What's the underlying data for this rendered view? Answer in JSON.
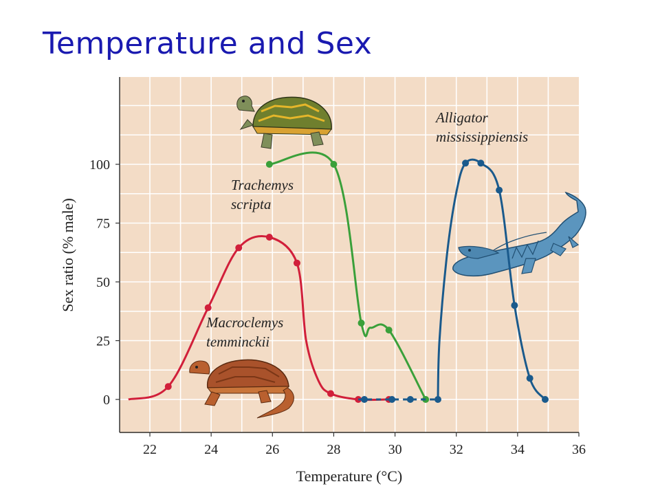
{
  "slide": {
    "title": "Temperature and Sex"
  },
  "chart_data": {
    "type": "line",
    "title": "",
    "xlabel": "Temperature (°C)",
    "ylabel": "Sex ratio (% male)",
    "xlim": [
      21,
      36
    ],
    "ylim": [
      0,
      130
    ],
    "xticks": [
      22,
      24,
      26,
      28,
      30,
      32,
      34,
      36
    ],
    "yticks": [
      0,
      25,
      50,
      75,
      100
    ],
    "grid": true,
    "legend": "none",
    "series": [
      {
        "name": "Macroclemys temminckii",
        "label_lines": [
          "Macroclemys",
          "temminckii"
        ],
        "color": "#d11f3a",
        "line": [
          [
            21.3,
            0
          ],
          [
            22.6,
            5.5
          ],
          [
            23.9,
            39
          ],
          [
            24.9,
            64.5
          ],
          [
            25.9,
            69
          ],
          [
            26.8,
            58
          ],
          [
            27.1,
            25
          ],
          [
            27.5,
            8
          ],
          [
            27.9,
            2.5
          ],
          [
            28.8,
            0
          ],
          [
            29.8,
            0
          ],
          [
            30.0,
            0
          ]
        ],
        "points": [
          [
            22.6,
            5.5
          ],
          [
            23.9,
            39
          ],
          [
            24.9,
            64.5
          ],
          [
            25.9,
            69
          ],
          [
            26.8,
            58
          ],
          [
            27.9,
            2.5
          ],
          [
            28.8,
            0
          ],
          [
            29.8,
            0
          ]
        ]
      },
      {
        "name": "Trachemys scripta",
        "label_lines": [
          "Trachemys",
          "scripta"
        ],
        "color": "#3aa03a",
        "line": [
          [
            25.9,
            100
          ],
          [
            28.0,
            100
          ],
          [
            28.9,
            32.5
          ],
          [
            29.2,
            30.5
          ],
          [
            29.8,
            29.5
          ],
          [
            31.0,
            0
          ]
        ],
        "points": [
          [
            25.9,
            100
          ],
          [
            28.0,
            100
          ],
          [
            28.9,
            32.5
          ],
          [
            29.8,
            29.5
          ],
          [
            31.0,
            0
          ]
        ]
      },
      {
        "name": "Alligator mississippiensis",
        "label_lines": [
          "Alligator",
          "mississippiensis"
        ],
        "color": "#1a5a8c",
        "dashed": [
          [
            28.8,
            0
          ],
          [
            31.4,
            0
          ]
        ],
        "line": [
          [
            31.4,
            0
          ],
          [
            31.45,
            25
          ],
          [
            31.7,
            62
          ],
          [
            32.0,
            88
          ],
          [
            32.3,
            100.5
          ],
          [
            32.8,
            100.5
          ],
          [
            33.4,
            89
          ],
          [
            33.9,
            40
          ],
          [
            34.4,
            9
          ],
          [
            34.9,
            0
          ]
        ],
        "points": [
          [
            29.0,
            0
          ],
          [
            29.9,
            0
          ],
          [
            30.5,
            0
          ],
          [
            31.4,
            0
          ],
          [
            32.3,
            100.5
          ],
          [
            32.8,
            100.5
          ],
          [
            33.4,
            89
          ],
          [
            33.9,
            40
          ],
          [
            34.4,
            9
          ],
          [
            34.9,
            0
          ]
        ]
      }
    ]
  },
  "icons": [
    "box-turtle-icon",
    "alligator-icon",
    "snapping-turtle-icon"
  ],
  "colors": {
    "background": "#f3dcc6",
    "grid": "#ffffff",
    "title": "#1a1ab0"
  }
}
